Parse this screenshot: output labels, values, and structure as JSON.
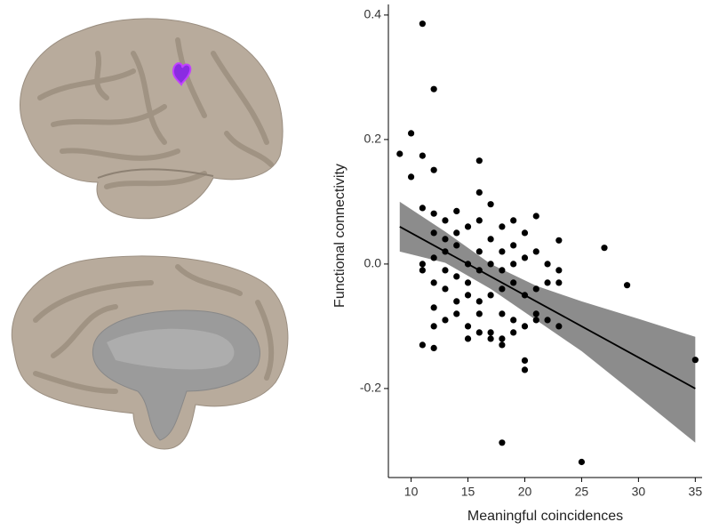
{
  "chart_data": {
    "type": "scatter",
    "xlabel": "Meaningful coincidences",
    "ylabel": "Functional connectivity",
    "xlim": [
      8,
      35.6
    ],
    "ylim": [
      -0.343,
      0.417
    ],
    "xticks": [
      10,
      15,
      20,
      25,
      30,
      35
    ],
    "yticks": [
      0.4,
      0.2,
      {
        "value": 0,
        "label": "0.0"
      },
      -0.2
    ],
    "points": {
      "color": "#000000",
      "x": [
        9,
        10,
        10,
        11,
        11,
        12,
        12,
        11,
        12,
        13,
        14,
        16,
        17,
        16,
        19,
        21,
        12,
        13,
        14,
        15,
        16,
        18,
        20,
        23,
        11,
        11,
        12,
        13,
        13,
        14,
        14,
        15,
        15,
        16,
        16,
        17,
        17,
        18,
        18,
        19,
        19,
        20,
        21,
        22,
        23,
        12,
        13,
        14,
        15,
        16,
        17,
        18,
        19,
        20,
        21,
        22,
        23,
        12,
        13,
        14,
        15,
        16,
        17,
        18,
        19,
        20,
        21,
        22,
        23,
        11,
        12,
        12,
        15,
        16,
        17,
        18,
        18,
        19,
        20,
        20,
        21,
        27,
        29,
        35,
        18,
        25
      ],
      "y": [
        0.177,
        0.21,
        0.14,
        0.386,
        0.174,
        0.281,
        0.151,
        0.09,
        0.081,
        0.07,
        0.085,
        0.115,
        0.096,
        0.166,
        0.07,
        0.077,
        0.05,
        0.04,
        0.05,
        0.06,
        0.07,
        0.06,
        0.05,
        0.038,
        0.0,
        -0.01,
        0.01,
        0.02,
        -0.01,
        0.03,
        -0.02,
        0.0,
        -0.03,
        0.02,
        -0.01,
        0.04,
        0.0,
        0.02,
        -0.01,
        0.0,
        0.03,
        0.01,
        0.02,
        0.0,
        -0.01,
        -0.03,
        -0.04,
        -0.06,
        -0.05,
        -0.06,
        -0.05,
        -0.04,
        -0.03,
        -0.05,
        -0.04,
        -0.03,
        -0.03,
        -0.07,
        -0.09,
        -0.08,
        -0.1,
        -0.08,
        -0.11,
        -0.08,
        -0.09,
        -0.1,
        -0.08,
        -0.09,
        -0.1,
        -0.13,
        -0.135,
        -0.1,
        -0.12,
        -0.11,
        -0.12,
        -0.13,
        -0.12,
        -0.11,
        -0.155,
        -0.17,
        -0.09,
        0.026,
        -0.034,
        -0.154,
        -0.287,
        -0.318
      ]
    },
    "fit": {
      "color": "#000000",
      "band_color": "#8c8c8c",
      "x": [
        9,
        13,
        17,
        21,
        25,
        30,
        35
      ],
      "y": [
        0.06,
        0.02,
        -0.02,
        -0.06,
        -0.1,
        -0.15,
        -0.2
      ],
      "lower": [
        0.02,
        0.002,
        -0.04,
        -0.09,
        -0.14,
        -0.213,
        -0.287
      ],
      "upper": [
        0.1,
        0.052,
        0.0,
        -0.035,
        -0.06,
        -0.088,
        -0.117
      ]
    }
  }
}
